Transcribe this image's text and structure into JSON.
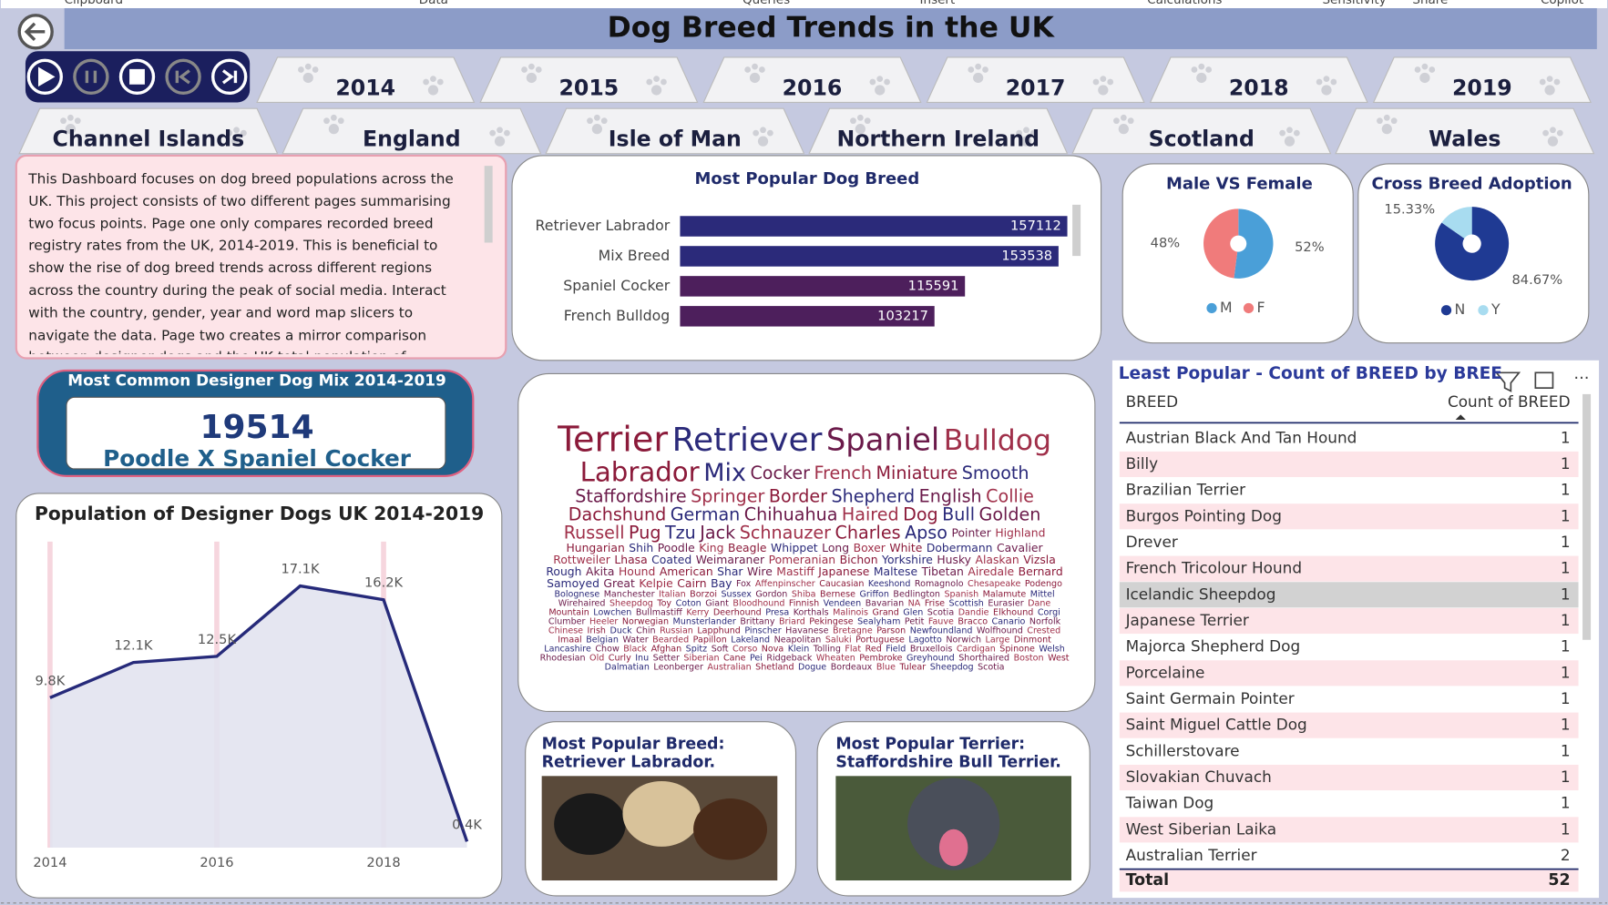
{
  "ribbon": [
    "Clipboard",
    "Data",
    "Queries",
    "Insert",
    "Calculations",
    "Sensitivity",
    "Share",
    "Copilot"
  ],
  "header": {
    "title": "Dog Breed Trends in the UK"
  },
  "year_slicer": [
    "2014",
    "2015",
    "2016",
    "2017",
    "2018",
    "2019"
  ],
  "region_slicer": [
    "Channel Islands",
    "England",
    "Isle of Man",
    "Northern Ireland",
    "Scotland",
    "Wales"
  ],
  "description": "This Dashboard focuses on dog breed populations across the UK. This project consists of two different pages summarising two focus points. Page one only compares recorded breed registry rates from the UK, 2014-2019. This is beneficial to show the rise of dog breed trends across different regions across the country during the peak of social media. Interact with the country, gender, year and word map slicers to navigate the data. Page two creates a mirror comparison between designer dogs and the UK total population of",
  "kpi": {
    "title": "Most Common Designer Dog Mix 2014-2019",
    "value": 19514,
    "label": "Poodle X Spaniel Cocker"
  },
  "chart_data": [
    {
      "type": "bar",
      "title": "Most Popular Dog Breed",
      "categories": [
        "Retriever Labrador",
        "Mix Breed",
        "Spaniel Cocker",
        "French Bulldog"
      ],
      "values": [
        157112,
        153538,
        115591,
        103217
      ],
      "colors": [
        "#2b2a7a",
        "#2b2a7a",
        "#4d1f5c",
        "#4d1f5c"
      ],
      "xlim": [
        0,
        160000
      ]
    },
    {
      "type": "pie",
      "title": "Male VS Female",
      "categories": [
        "M",
        "F"
      ],
      "values": [
        52,
        48
      ],
      "value_labels": [
        "52%",
        "48%"
      ],
      "colors": [
        "#4a9fd8",
        "#f07b7b"
      ]
    },
    {
      "type": "pie",
      "title": "Cross Breed Adoption",
      "categories": [
        "N",
        "Y"
      ],
      "values": [
        84.67,
        15.33
      ],
      "value_labels": [
        "84.67%",
        "15.33%"
      ],
      "colors": [
        "#1f3a93",
        "#a8dcf0"
      ]
    },
    {
      "type": "line",
      "title": "Population of Designer Dogs UK 2014-2019",
      "x": [
        2014,
        2015,
        2016,
        2017,
        2018,
        2019
      ],
      "values": [
        9800,
        12100,
        12500,
        17100,
        16200,
        400
      ],
      "value_labels": [
        "9.8K",
        "12.1K",
        "12.5K",
        "17.1K",
        "16.2K",
        "0.4K"
      ],
      "xlim": [
        2014,
        2019
      ],
      "xticks": [
        2014,
        2016,
        2018
      ],
      "ylim": [
        0,
        20000
      ],
      "color": "#262a7a",
      "area_color": "#e2e3f0",
      "grid": true
    }
  ],
  "word_cloud": [
    "Terrier",
    "Retriever",
    "Spaniel",
    "Bulldog",
    "Labrador",
    "Mix",
    "Cocker",
    "French",
    "Miniature",
    "Smooth",
    "Staffordshire",
    "Springer",
    "Border",
    "Shepherd",
    "English",
    "Collie",
    "Dachshund",
    "German",
    "Chihuahua",
    "Haired",
    "Dog",
    "Bull",
    "Golden",
    "Russell",
    "Pug",
    "Tzu",
    "Jack",
    "Schnauzer",
    "Charles",
    "Apso",
    "Pointer",
    "Highland",
    "Hungarian",
    "Shih",
    "Poodle",
    "King",
    "Beagle",
    "Whippet",
    "Long",
    "Boxer",
    "White",
    "Dobermann",
    "Cavalier",
    "Rottweiler",
    "Lhasa",
    "Coated",
    "Weimaraner",
    "Pomeranian",
    "Bichon",
    "Yorkshire",
    "Husky",
    "Alaskan",
    "Vizsla",
    "Rough",
    "Akita",
    "Hound",
    "American",
    "Shar",
    "Wire",
    "Mastiff",
    "Japanese",
    "Maltese",
    "Tibetan",
    "Airedale",
    "Bernard",
    "Samoyed",
    "Great",
    "Kelpie",
    "Cairn",
    "Bay",
    "Fox",
    "Affenpinscher",
    "Caucasian",
    "Keeshond",
    "Romagnolo",
    "Chesapeake",
    "Podengo",
    "Bolognese",
    "Manchester",
    "Italian",
    "Borzoi",
    "Sussex",
    "Gordon",
    "Shiba",
    "Bernese",
    "Griffon",
    "Bedlington",
    "Spanish",
    "Malamute",
    "Mittel",
    "Wirehaired",
    "Sheepdog",
    "Toy",
    "Coton",
    "Giant",
    "Bloodhound",
    "Finnish",
    "Vendeen",
    "Bavarian",
    "NA",
    "Frise",
    "Scottish",
    "Eurasier",
    "Dane",
    "Mountain",
    "Lowchen",
    "Bullmastiff",
    "Kerry",
    "Deerhound",
    "Presa",
    "Korthals",
    "Malinois",
    "Grand",
    "Glen",
    "Scotia",
    "Dandie",
    "Elkhound",
    "Corgi",
    "Clumber",
    "Heeler",
    "Norwegian",
    "Munsterlander",
    "Brittany",
    "Briard",
    "Pekingese",
    "Sealyham",
    "Petit",
    "Fauve",
    "Bracco",
    "Canario",
    "Norfolk",
    "Chinese",
    "Irish",
    "Duck",
    "Chin",
    "Russian",
    "Lapphund",
    "Pinscher",
    "Havanese",
    "Bretagne",
    "Parson",
    "Newfoundland",
    "Wolfhound",
    "Crested",
    "Imaal",
    "Belgian",
    "Water",
    "Bearded",
    "Papillon",
    "Lakeland",
    "Neapolitan",
    "Saluki",
    "Portuguese",
    "Lagotto",
    "Norwich",
    "Large",
    "Dinmont",
    "Lancashire",
    "Chow",
    "Black",
    "Afghan",
    "Spitz",
    "Soft",
    "Corso",
    "Nova",
    "Klein",
    "Tolling",
    "Flat",
    "Red",
    "Field",
    "Bruxellois",
    "Cardigan",
    "Spinone",
    "Welsh",
    "Rhodesian",
    "Old",
    "Curly",
    "Inu",
    "Setter",
    "Siberian",
    "Cane",
    "Pei",
    "Ridgeback",
    "Wheaten",
    "Pembroke",
    "Greyhound",
    "Shorthaired",
    "Boston",
    "West",
    "Dalmatian",
    "Leonberger",
    "Australian",
    "Shetland",
    "Dogue",
    "Bordeaux",
    "Blue",
    "Tulear",
    "Sheepdog",
    "Scotia"
  ],
  "photo_cards": [
    {
      "title": [
        "Most Popular Breed:",
        "Retriever Labrador."
      ]
    },
    {
      "title": [
        "Most Popular Terrier:",
        "Staffordshire Bull Terrier."
      ]
    }
  ],
  "table": {
    "title": "Least Popular - Count of BREED by BREE",
    "columns": [
      "BREED",
      "Count of BREED"
    ],
    "rows": [
      [
        "Austrian Black And Tan Hound",
        1
      ],
      [
        "Billy",
        1
      ],
      [
        "Brazilian Terrier",
        1
      ],
      [
        "Burgos Pointing Dog",
        1
      ],
      [
        "Drever",
        1
      ],
      [
        "French Tricolour Hound",
        1
      ],
      [
        "Icelandic Sheepdog",
        1
      ],
      [
        "Japanese Terrier",
        1
      ],
      [
        "Majorca Shepherd Dog",
        1
      ],
      [
        "Porcelaine",
        1
      ],
      [
        "Saint Germain Pointer",
        1
      ],
      [
        "Saint Miguel Cattle Dog",
        1
      ],
      [
        "Schillerstovare",
        1
      ],
      [
        "Slovakian Chuvach",
        1
      ],
      [
        "Taiwan Dog",
        1
      ],
      [
        "West Siberian Laika",
        1
      ],
      [
        "Australian Terrier",
        2
      ]
    ],
    "total": [
      "Total",
      52
    ]
  }
}
